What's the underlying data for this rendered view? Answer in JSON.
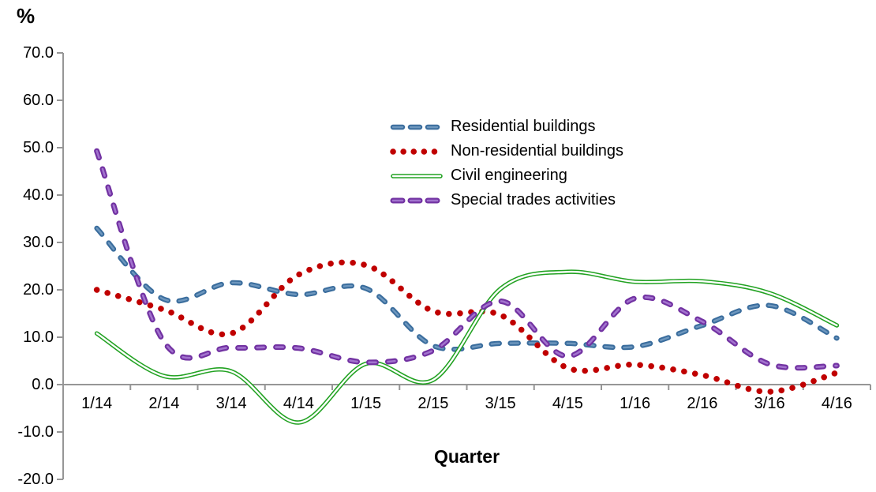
{
  "chart_data": {
    "type": "line",
    "title": "",
    "ylabel": "%",
    "xlabel": "Quarter",
    "categories": [
      "1/14",
      "2/14",
      "3/14",
      "4/14",
      "1/15",
      "2/15",
      "3/15",
      "4/15",
      "1/16",
      "2/16",
      "3/16",
      "4/16"
    ],
    "series": [
      {
        "name": "Residential buildings",
        "color": "#3A6D9D",
        "highlight": "#6E97BE",
        "style": "dashed",
        "values": [
          33.0,
          18.0,
          21.5,
          19.0,
          20.3,
          8.2,
          8.7,
          8.7,
          8.0,
          12.5,
          16.7,
          9.8
        ]
      },
      {
        "name": "Non-residential buildings",
        "color": "#C00000",
        "highlight": "#D75454",
        "style": "dotted",
        "values": [
          20.0,
          15.8,
          10.8,
          23.2,
          25.2,
          15.5,
          14.7,
          3.5,
          4.2,
          2.0,
          -1.5,
          2.5
        ]
      },
      {
        "name": "Civil engineering",
        "color": "#22A222",
        "highlight": "#FFFFFF",
        "style": "double",
        "values": [
          10.8,
          1.8,
          2.8,
          -8.0,
          4.4,
          1.0,
          20.2,
          23.8,
          21.7,
          21.8,
          19.3,
          12.5
        ]
      },
      {
        "name": "Special trades activities",
        "color": "#7232A2",
        "highlight": "#A273CE",
        "style": "dashed-wide",
        "values": [
          49.3,
          9.0,
          7.8,
          7.7,
          4.7,
          7.2,
          17.6,
          6.0,
          18.2,
          13.3,
          4.3,
          4.0
        ]
      }
    ],
    "y_ticks": [
      "70.0",
      "60.0",
      "50.0",
      "40.0",
      "30.0",
      "20.0",
      "10.0",
      "0.0",
      "-10.0",
      "-20.0"
    ],
    "ylim": [
      -20,
      70
    ],
    "grid": false,
    "legend_position": "upper-center",
    "axis_color": "#969696",
    "text_color": "#000000"
  }
}
